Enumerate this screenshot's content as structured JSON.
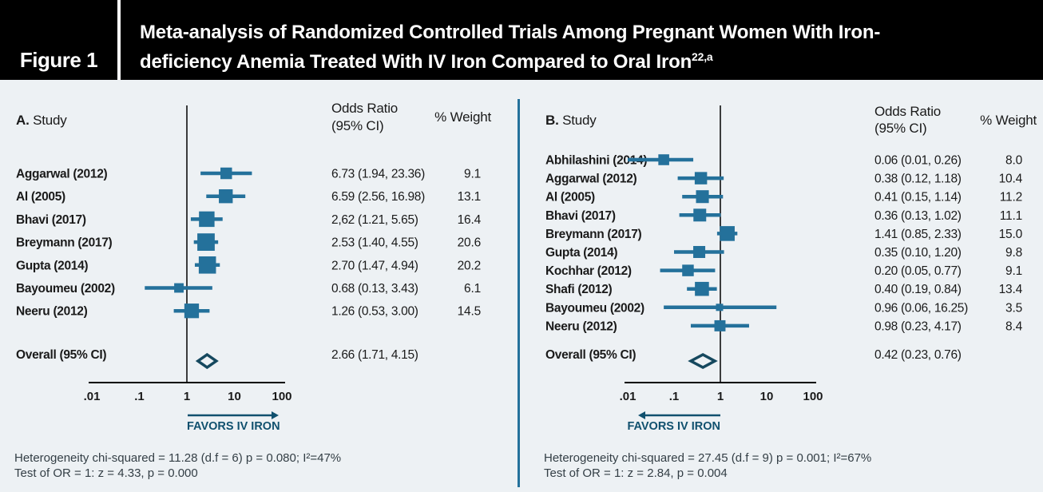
{
  "header": {
    "figure_label": "Figure 1",
    "title_line1": "Meta-analysis of Randomized Controlled Trials Among Pregnant Women With Iron-",
    "title_line2": "deficiency Anemia Treated With IV Iron Compared to Oral Iron",
    "title_superscript": "22,a"
  },
  "colors": {
    "background": "#EDF1F4",
    "header_bg": "#000000",
    "header_text": "#FFFFFF",
    "marker": "#24719B",
    "ci_line": "#24719B",
    "diamond_outline": "#15485E",
    "favors": "#10506E",
    "panel_divider": "#24719B",
    "text": "#1A1A1A",
    "muted_text": "#333E45",
    "axis": "#000000"
  },
  "chart_data": {
    "type": "forest",
    "x_scale": "log",
    "axis_ticks": [
      ".01",
      ".1",
      "1",
      "10",
      "100"
    ],
    "axis_tick_values": [
      0.01,
      0.1,
      1,
      10,
      100
    ],
    "panels": [
      {
        "panel_label": "A.",
        "study_header": "Study",
        "or_header": [
          "Odds Ratio",
          "(95% CI)"
        ],
        "weight_header": "% Weight",
        "favors_label": "FAVORS IV IRON",
        "favors_direction": "right",
        "studies": [
          {
            "label": "Aggarwal (2012)",
            "or": 6.73,
            "ci_low": 1.94,
            "ci_high": 23.36,
            "or_text": "6.73 (1.94, 23.36)",
            "weight": 9.1,
            "weight_text": "9.1"
          },
          {
            "label": "Al (2005)",
            "or": 6.59,
            "ci_low": 2.56,
            "ci_high": 16.98,
            "or_text": "6.59 (2.56, 16.98)",
            "weight": 13.1,
            "weight_text": "13.1"
          },
          {
            "label": "Bhavi (2017)",
            "or": 2.62,
            "ci_low": 1.21,
            "ci_high": 5.65,
            "or_text": "2,62 (1.21, 5.65)",
            "weight": 16.4,
            "weight_text": "16.4"
          },
          {
            "label": "Breymann (2017)",
            "or": 2.53,
            "ci_low": 1.4,
            "ci_high": 4.55,
            "or_text": "2.53 (1.40, 4.55)",
            "weight": 20.6,
            "weight_text": "20.6"
          },
          {
            "label": "Gupta (2014)",
            "or": 2.7,
            "ci_low": 1.47,
            "ci_high": 4.94,
            "or_text": "2.70 (1.47, 4.94)",
            "weight": 20.2,
            "weight_text": "20.2"
          },
          {
            "label": "Bayoumeu (2002)",
            "or": 0.68,
            "ci_low": 0.13,
            "ci_high": 3.43,
            "or_text": "0.68 (0.13, 3.43)",
            "weight": 6.1,
            "weight_text": "6.1"
          },
          {
            "label": "Neeru (2012)",
            "or": 1.26,
            "ci_low": 0.53,
            "ci_high": 3.0,
            "or_text": "1.26 (0.53, 3.00)",
            "weight": 14.5,
            "weight_text": "14.5"
          }
        ],
        "overall": {
          "label": "Overall (95% CI)",
          "or": 2.66,
          "ci_low": 1.71,
          "ci_high": 4.15,
          "or_text": "2.66 (1.71, 4.15)"
        },
        "footnotes": [
          "Heterogeneity chi-squared = 11.28 (d.f = 6) p = 0.080; I²=47%",
          "Test of OR = 1: z = 4.33, p = 0.000"
        ]
      },
      {
        "panel_label": "B.",
        "study_header": "Study",
        "or_header": [
          "Odds Ratio",
          "(95% CI)"
        ],
        "weight_header": "% Weight",
        "favors_label": "FAVORS IV IRON",
        "favors_direction": "left",
        "studies": [
          {
            "label": "Abhilashini (2014)",
            "or": 0.06,
            "ci_low": 0.01,
            "ci_high": 0.26,
            "or_text": "0.06 (0.01, 0.26)",
            "weight": 8.0,
            "weight_text": "8.0"
          },
          {
            "label": "Aggarwal (2012)",
            "or": 0.38,
            "ci_low": 0.12,
            "ci_high": 1.18,
            "or_text": "0.38 (0.12, 1.18)",
            "weight": 10.4,
            "weight_text": "10.4"
          },
          {
            "label": "Al (2005)",
            "or": 0.41,
            "ci_low": 0.15,
            "ci_high": 1.14,
            "or_text": "0.41 (0.15, 1.14)",
            "weight": 11.2,
            "weight_text": "11.2"
          },
          {
            "label": "Bhavi (2017)",
            "or": 0.36,
            "ci_low": 0.13,
            "ci_high": 1.02,
            "or_text": "0.36 (0.13, 1.02)",
            "weight": 11.1,
            "weight_text": "11.1"
          },
          {
            "label": "Breymann (2017)",
            "or": 1.41,
            "ci_low": 0.85,
            "ci_high": 2.33,
            "or_text": "1.41 (0.85, 2.33)",
            "weight": 15.0,
            "weight_text": "15.0"
          },
          {
            "label": "Gupta (2014)",
            "or": 0.35,
            "ci_low": 0.1,
            "ci_high": 1.2,
            "or_text": "0.35 (0.10, 1.20)",
            "weight": 9.8,
            "weight_text": "9.8"
          },
          {
            "label": "Kochhar (2012)",
            "or": 0.2,
            "ci_low": 0.05,
            "ci_high": 0.77,
            "or_text": "0.20 (0.05, 0.77)",
            "weight": 9.1,
            "weight_text": "9.1"
          },
          {
            "label": "Shafi (2012)",
            "or": 0.4,
            "ci_low": 0.19,
            "ci_high": 0.84,
            "or_text": "0.40 (0.19, 0.84)",
            "weight": 13.4,
            "weight_text": "13.4"
          },
          {
            "label": "Bayoumeu (2002)",
            "or": 0.96,
            "ci_low": 0.06,
            "ci_high": 16.25,
            "or_text": "0.96 (0.06, 16.25)",
            "weight": 3.5,
            "weight_text": "3.5"
          },
          {
            "label": "Neeru (2012)",
            "or": 0.98,
            "ci_low": 0.23,
            "ci_high": 4.17,
            "or_text": "0.98 (0.23, 4.17)",
            "weight": 8.4,
            "weight_text": "8.4"
          }
        ],
        "overall": {
          "label": "Overall (95% CI)",
          "or": 0.42,
          "ci_low": 0.23,
          "ci_high": 0.76,
          "or_text": "0.42 (0.23, 0.76)"
        },
        "footnotes": [
          "Heterogeneity chi-squared = 27.45 (d.f = 9) p = 0.001; I²=67%",
          "Test of OR = 1: z = 2.84, p = 0.004"
        ]
      }
    ]
  }
}
